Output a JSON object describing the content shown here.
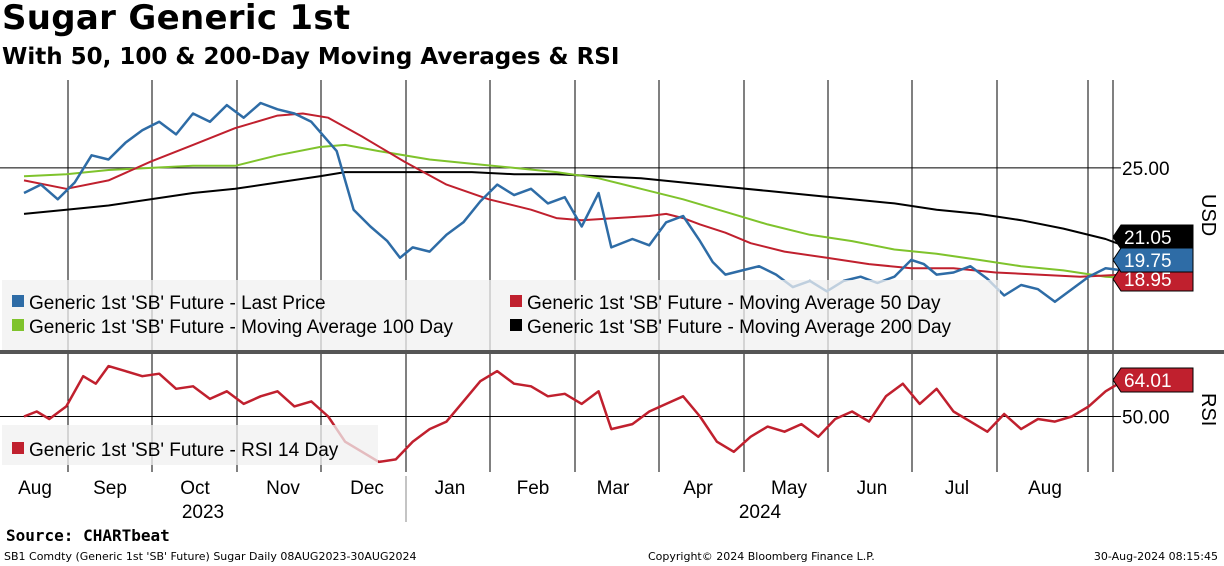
{
  "chart_data": {
    "type": "line",
    "title": "Sugar Generic 1st",
    "subtitle": "With 50, 100 & 200-Day Moving Averages & RSI",
    "x_range": [
      "2023-08-08",
      "2024-08-30"
    ],
    "months": [
      "Aug",
      "Sep",
      "Oct",
      "Nov",
      "Dec",
      "Jan",
      "Feb",
      "Mar",
      "Apr",
      "May",
      "Jun",
      "Jul",
      "Aug"
    ],
    "years": [
      "2023",
      "2024"
    ],
    "price_panel": {
      "ylabel": "USD",
      "ylim": [
        16.2,
        29.2
      ],
      "ticks": [
        "25.00"
      ],
      "tick_values": [
        25
      ],
      "series": [
        {
          "name": "Generic 1st 'SB' Future - Last Price",
          "color": "#2e6ca6",
          "points": [
            [
              0,
              23.8
            ],
            [
              0.2,
              24.2
            ],
            [
              0.4,
              23.5
            ],
            [
              0.6,
              24.3
            ],
            [
              0.8,
              25.6
            ],
            [
              1.0,
              25.4
            ],
            [
              1.2,
              26.2
            ],
            [
              1.4,
              26.8
            ],
            [
              1.6,
              27.2
            ],
            [
              1.8,
              26.6
            ],
            [
              2.0,
              27.6
            ],
            [
              2.2,
              27.2
            ],
            [
              2.4,
              28.0
            ],
            [
              2.6,
              27.4
            ],
            [
              2.8,
              28.1
            ],
            [
              3.0,
              27.8
            ],
            [
              3.2,
              27.6
            ],
            [
              3.4,
              27.2
            ],
            [
              3.7,
              25.8
            ],
            [
              3.9,
              23.0
            ],
            [
              4.1,
              22.2
            ],
            [
              4.3,
              21.5
            ],
            [
              4.45,
              20.7
            ],
            [
              4.6,
              21.2
            ],
            [
              4.8,
              21.0
            ],
            [
              5.0,
              21.8
            ],
            [
              5.2,
              22.4
            ],
            [
              5.4,
              23.4
            ],
            [
              5.6,
              24.2
            ],
            [
              5.8,
              23.7
            ],
            [
              6.0,
              24.0
            ],
            [
              6.2,
              23.3
            ],
            [
              6.4,
              23.6
            ],
            [
              6.6,
              22.2
            ],
            [
              6.8,
              23.8
            ],
            [
              6.95,
              21.2
            ],
            [
              7.2,
              21.6
            ],
            [
              7.4,
              21.3
            ],
            [
              7.6,
              22.4
            ],
            [
              7.8,
              22.7
            ],
            [
              8.0,
              21.5
            ],
            [
              8.15,
              20.5
            ],
            [
              8.3,
              19.9
            ],
            [
              8.5,
              20.1
            ],
            [
              8.7,
              20.3
            ],
            [
              8.9,
              19.9
            ],
            [
              9.1,
              19.3
            ],
            [
              9.3,
              19.6
            ],
            [
              9.5,
              19.1
            ],
            [
              9.7,
              19.6
            ],
            [
              9.9,
              19.8
            ],
            [
              10.1,
              19.5
            ],
            [
              10.3,
              19.8
            ],
            [
              10.5,
              20.6
            ],
            [
              10.65,
              20.4
            ],
            [
              10.8,
              19.9
            ],
            [
              11.0,
              20.0
            ],
            [
              11.2,
              20.3
            ],
            [
              11.4,
              19.7
            ],
            [
              11.6,
              18.9
            ],
            [
              11.8,
              19.4
            ],
            [
              12.0,
              19.2
            ],
            [
              12.2,
              18.6
            ],
            [
              12.4,
              19.2
            ],
            [
              12.6,
              19.8
            ],
            [
              12.8,
              20.2
            ],
            [
              13.0,
              20.1
            ]
          ]
        },
        {
          "name": "Generic 1st 'SB' Future - Moving Average 50 Day",
          "color": "#c0202e",
          "points": [
            [
              0,
              24.4
            ],
            [
              0.5,
              24.0
            ],
            [
              1.0,
              24.4
            ],
            [
              1.5,
              25.3
            ],
            [
              2.0,
              26.1
            ],
            [
              2.5,
              26.9
            ],
            [
              3.0,
              27.5
            ],
            [
              3.3,
              27.6
            ],
            [
              3.6,
              27.4
            ],
            [
              4.0,
              26.5
            ],
            [
              4.5,
              25.3
            ],
            [
              5.0,
              24.2
            ],
            [
              5.5,
              23.5
            ],
            [
              6.0,
              23.0
            ],
            [
              6.3,
              22.6
            ],
            [
              6.6,
              22.5
            ],
            [
              7.0,
              22.6
            ],
            [
              7.4,
              22.7
            ],
            [
              7.6,
              22.8
            ],
            [
              7.8,
              22.6
            ],
            [
              8.0,
              22.3
            ],
            [
              8.3,
              21.9
            ],
            [
              8.6,
              21.4
            ],
            [
              9.0,
              21.0
            ],
            [
              9.5,
              20.7
            ],
            [
              10.0,
              20.4
            ],
            [
              10.5,
              20.2
            ],
            [
              11.0,
              20.2
            ],
            [
              11.5,
              20.0
            ],
            [
              12.0,
              19.9
            ],
            [
              12.5,
              19.8
            ],
            [
              13.0,
              19.9
            ]
          ]
        },
        {
          "name": "Generic 1st 'SB' Future - Moving Average 100 Day",
          "color": "#7fc32c",
          "points": [
            [
              0,
              24.6
            ],
            [
              0.5,
              24.7
            ],
            [
              1.0,
              24.9
            ],
            [
              1.5,
              25.0
            ],
            [
              2.0,
              25.1
            ],
            [
              2.5,
              25.1
            ],
            [
              3.0,
              25.6
            ],
            [
              3.5,
              26.0
            ],
            [
              3.8,
              26.1
            ],
            [
              4.2,
              25.8
            ],
            [
              4.8,
              25.4
            ],
            [
              5.3,
              25.2
            ],
            [
              5.8,
              25.0
            ],
            [
              6.3,
              24.8
            ],
            [
              6.8,
              24.5
            ],
            [
              7.3,
              24.0
            ],
            [
              7.8,
              23.5
            ],
            [
              8.3,
              22.9
            ],
            [
              8.8,
              22.3
            ],
            [
              9.3,
              21.8
            ],
            [
              9.8,
              21.5
            ],
            [
              10.3,
              21.1
            ],
            [
              10.8,
              20.9
            ],
            [
              11.3,
              20.6
            ],
            [
              11.8,
              20.3
            ],
            [
              12.3,
              20.1
            ],
            [
              12.8,
              19.8
            ],
            [
              13.0,
              19.75
            ]
          ]
        },
        {
          "name": "Generic 1st 'SB' Future - Moving Average 200 Day",
          "color": "#000000",
          "points": [
            [
              0,
              22.8
            ],
            [
              0.5,
              23.0
            ],
            [
              1.0,
              23.2
            ],
            [
              1.5,
              23.5
            ],
            [
              2.0,
              23.8
            ],
            [
              2.5,
              24.0
            ],
            [
              3.0,
              24.3
            ],
            [
              3.5,
              24.6
            ],
            [
              3.8,
              24.8
            ],
            [
              4.3,
              24.8
            ],
            [
              4.8,
              24.8
            ],
            [
              5.3,
              24.8
            ],
            [
              5.8,
              24.7
            ],
            [
              6.3,
              24.7
            ],
            [
              6.8,
              24.6
            ],
            [
              7.3,
              24.5
            ],
            [
              7.8,
              24.3
            ],
            [
              8.3,
              24.1
            ],
            [
              8.8,
              23.9
            ],
            [
              9.3,
              23.7
            ],
            [
              9.8,
              23.5
            ],
            [
              10.3,
              23.3
            ],
            [
              10.8,
              23.0
            ],
            [
              11.3,
              22.8
            ],
            [
              11.8,
              22.5
            ],
            [
              12.3,
              22.1
            ],
            [
              12.8,
              21.6
            ],
            [
              13.0,
              21.3
            ]
          ]
        }
      ],
      "last_values": [
        "21.05",
        "19.75",
        "18.95"
      ]
    },
    "rsi_panel": {
      "ylabel": "RSI",
      "ylim": [
        28,
        74
      ],
      "ticks": [
        "50.00"
      ],
      "tick_values": [
        50
      ],
      "series": [
        {
          "name": "Generic 1st 'SB' Future - RSI 14 Day",
          "color": "#c0202e",
          "points": [
            [
              0,
              50.0
            ],
            [
              0.15,
              52.0
            ],
            [
              0.3,
              49.0
            ],
            [
              0.5,
              54.0
            ],
            [
              0.7,
              66.0
            ],
            [
              0.85,
              63.0
            ],
            [
              1.0,
              70.0
            ],
            [
              1.2,
              68.0
            ],
            [
              1.4,
              66.0
            ],
            [
              1.6,
              67.0
            ],
            [
              1.8,
              61.0
            ],
            [
              2.0,
              62.0
            ],
            [
              2.2,
              57.0
            ],
            [
              2.4,
              60.0
            ],
            [
              2.6,
              55.0
            ],
            [
              2.8,
              58.0
            ],
            [
              3.0,
              60.0
            ],
            [
              3.2,
              54.0
            ],
            [
              3.4,
              56.0
            ],
            [
              3.6,
              50.0
            ],
            [
              3.8,
              40.0
            ],
            [
              4.0,
              36.0
            ],
            [
              4.2,
              32.0
            ],
            [
              4.4,
              33.0
            ],
            [
              4.6,
              40.0
            ],
            [
              4.8,
              45.0
            ],
            [
              5.0,
              48.0
            ],
            [
              5.2,
              56.0
            ],
            [
              5.4,
              64.0
            ],
            [
              5.6,
              68.0
            ],
            [
              5.8,
              63.0
            ],
            [
              6.0,
              62.0
            ],
            [
              6.2,
              58.0
            ],
            [
              6.4,
              59.0
            ],
            [
              6.6,
              55.0
            ],
            [
              6.8,
              60.0
            ],
            [
              6.95,
              45.0
            ],
            [
              7.2,
              47.0
            ],
            [
              7.4,
              52.0
            ],
            [
              7.6,
              55.0
            ],
            [
              7.8,
              58.0
            ],
            [
              8.0,
              50.0
            ],
            [
              8.2,
              40.0
            ],
            [
              8.4,
              36.0
            ],
            [
              8.6,
              42.0
            ],
            [
              8.8,
              46.0
            ],
            [
              9.0,
              44.0
            ],
            [
              9.2,
              47.0
            ],
            [
              9.4,
              42.0
            ],
            [
              9.6,
              49.0
            ],
            [
              9.8,
              52.0
            ],
            [
              10.0,
              48.0
            ],
            [
              10.2,
              58.0
            ],
            [
              10.4,
              63.0
            ],
            [
              10.6,
              55.0
            ],
            [
              10.8,
              61.0
            ],
            [
              11.0,
              52.0
            ],
            [
              11.2,
              48.0
            ],
            [
              11.4,
              44.0
            ],
            [
              11.6,
              51.0
            ],
            [
              11.8,
              45.0
            ],
            [
              12.0,
              49.0
            ],
            [
              12.2,
              48.0
            ],
            [
              12.4,
              50.0
            ],
            [
              12.6,
              54.0
            ],
            [
              12.8,
              60.0
            ],
            [
              13.0,
              64.0
            ]
          ]
        }
      ],
      "last_value": "64.01"
    },
    "legend": [
      "Generic 1st 'SB' Future - Last Price",
      "Generic 1st 'SB' Future - Moving Average 50 Day",
      "Generic 1st 'SB' Future - Moving Average 100 Day",
      "Generic 1st 'SB' Future - Moving Average 200 Day"
    ],
    "rsi_legend": "Generic 1st 'SB' Future - RSI 14 Day"
  },
  "footer": {
    "source": "Source: CHARTbeat",
    "left": "SB1 Comdty (Generic 1st 'SB' Future) Sugar  Daily 08AUG2023-30AUG2024",
    "middle": "Copyright© 2024 Bloomberg Finance L.P.",
    "right": "30-Aug-2024 08:15:45"
  }
}
